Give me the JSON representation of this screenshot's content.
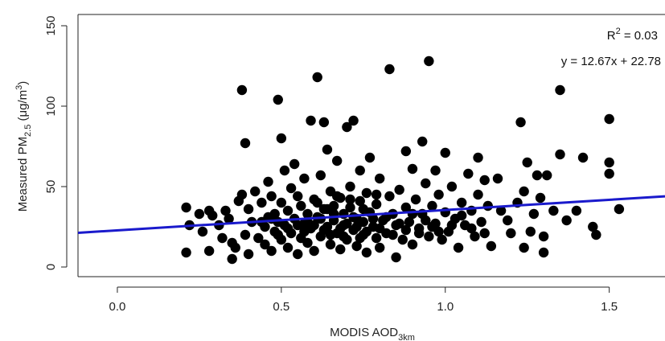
{
  "chart_data": {
    "type": "scatter",
    "xlabel": "MODIS AOD",
    "xlabel_sub": "3km",
    "ylabel": "Measured PM",
    "ylabel_sub": "2.5",
    "ylabel_unit": " (μg/m",
    "ylabel_unit_sup": "3",
    "ylabel_unit_close": ")",
    "xlim": [
      -0.12,
      1.67
    ],
    "ylim": [
      -6,
      157
    ],
    "x_ticks": [
      0.0,
      0.5,
      1.0,
      1.5
    ],
    "x_tick_labels": [
      "0.0",
      "0.5",
      "1.0",
      "1.5"
    ],
    "y_ticks": [
      0,
      50,
      100,
      150
    ],
    "y_tick_labels": [
      "0",
      "50",
      "100",
      "150"
    ],
    "grid": false,
    "annotation_r2_label": "R",
    "annotation_r2_sup": "2",
    "annotation_r2_value": " = 0.03",
    "annotation_equation": "y = 12.67x + 22.78",
    "regression": {
      "slope": 12.67,
      "intercept": 22.78,
      "color": "#1a1acc"
    },
    "point_color": "#000000",
    "points": [
      [
        0.21,
        37
      ],
      [
        0.21,
        9
      ],
      [
        0.22,
        26
      ],
      [
        0.25,
        33
      ],
      [
        0.26,
        22
      ],
      [
        0.28,
        10
      ],
      [
        0.28,
        35
      ],
      [
        0.29,
        32
      ],
      [
        0.31,
        26
      ],
      [
        0.32,
        18
      ],
      [
        0.33,
        35
      ],
      [
        0.34,
        30
      ],
      [
        0.35,
        5
      ],
      [
        0.35,
        15
      ],
      [
        0.36,
        12
      ],
      [
        0.37,
        41
      ],
      [
        0.38,
        45
      ],
      [
        0.38,
        110
      ],
      [
        0.39,
        77
      ],
      [
        0.39,
        20
      ],
      [
        0.4,
        8
      ],
      [
        0.4,
        36
      ],
      [
        0.41,
        28
      ],
      [
        0.42,
        47
      ],
      [
        0.43,
        18
      ],
      [
        0.44,
        40
      ],
      [
        0.45,
        25
      ],
      [
        0.45,
        14
      ],
      [
        0.46,
        53
      ],
      [
        0.46,
        31
      ],
      [
        0.47,
        10
      ],
      [
        0.47,
        44
      ],
      [
        0.48,
        22
      ],
      [
        0.48,
        33
      ],
      [
        0.49,
        28
      ],
      [
        0.49,
        104
      ],
      [
        0.5,
        80
      ],
      [
        0.5,
        17
      ],
      [
        0.5,
        40
      ],
      [
        0.51,
        60
      ],
      [
        0.51,
        26
      ],
      [
        0.52,
        35
      ],
      [
        0.52,
        12
      ],
      [
        0.53,
        49
      ],
      [
        0.53,
        21
      ],
      [
        0.54,
        30
      ],
      [
        0.54,
        64
      ],
      [
        0.55,
        8
      ],
      [
        0.55,
        44
      ],
      [
        0.56,
        18
      ],
      [
        0.56,
        38
      ],
      [
        0.57,
        27
      ],
      [
        0.57,
        55
      ],
      [
        0.58,
        15
      ],
      [
        0.58,
        33
      ],
      [
        0.59,
        91
      ],
      [
        0.59,
        24
      ],
      [
        0.6,
        42
      ],
      [
        0.6,
        10
      ],
      [
        0.61,
        118
      ],
      [
        0.61,
        31
      ],
      [
        0.62,
        19
      ],
      [
        0.62,
        57
      ],
      [
        0.63,
        90
      ],
      [
        0.63,
        36
      ],
      [
        0.64,
        25
      ],
      [
        0.64,
        73
      ],
      [
        0.65,
        14
      ],
      [
        0.65,
        47
      ],
      [
        0.66,
        29
      ],
      [
        0.66,
        38
      ],
      [
        0.67,
        21
      ],
      [
        0.67,
        66
      ],
      [
        0.68,
        11
      ],
      [
        0.68,
        43
      ],
      [
        0.69,
        33
      ],
      [
        0.69,
        26
      ],
      [
        0.7,
        87
      ],
      [
        0.7,
        17
      ],
      [
        0.71,
        50
      ],
      [
        0.71,
        37
      ],
      [
        0.72,
        23
      ],
      [
        0.72,
        91
      ],
      [
        0.73,
        30
      ],
      [
        0.73,
        13
      ],
      [
        0.74,
        60
      ],
      [
        0.74,
        41
      ],
      [
        0.75,
        20
      ],
      [
        0.75,
        28
      ],
      [
        0.76,
        46
      ],
      [
        0.76,
        9
      ],
      [
        0.77,
        34
      ],
      [
        0.77,
        68
      ],
      [
        0.78,
        25
      ],
      [
        0.79,
        18
      ],
      [
        0.79,
        39
      ],
      [
        0.8,
        12
      ],
      [
        0.8,
        55
      ],
      [
        0.81,
        29
      ],
      [
        0.82,
        21
      ],
      [
        0.83,
        44
      ],
      [
        0.83,
        123
      ],
      [
        0.84,
        33
      ],
      [
        0.85,
        6
      ],
      [
        0.85,
        26
      ],
      [
        0.86,
        48
      ],
      [
        0.87,
        17
      ],
      [
        0.88,
        72
      ],
      [
        0.88,
        37
      ],
      [
        0.89,
        28
      ],
      [
        0.9,
        61
      ],
      [
        0.9,
        14
      ],
      [
        0.91,
        42
      ],
      [
        0.92,
        24
      ],
      [
        0.93,
        78
      ],
      [
        0.93,
        33
      ],
      [
        0.94,
        52
      ],
      [
        0.95,
        128
      ],
      [
        0.95,
        19
      ],
      [
        0.96,
        38
      ],
      [
        0.97,
        60
      ],
      [
        0.97,
        27
      ],
      [
        0.98,
        45
      ],
      [
        0.99,
        17
      ],
      [
        1.0,
        71
      ],
      [
        1.0,
        34
      ],
      [
        1.01,
        22
      ],
      [
        1.02,
        50
      ],
      [
        1.03,
        30
      ],
      [
        1.04,
        12
      ],
      [
        1.05,
        40
      ],
      [
        1.06,
        26
      ],
      [
        1.07,
        58
      ],
      [
        1.08,
        35
      ],
      [
        1.09,
        19
      ],
      [
        1.1,
        68
      ],
      [
        1.1,
        45
      ],
      [
        1.11,
        28
      ],
      [
        1.12,
        54
      ],
      [
        1.13,
        38
      ],
      [
        1.14,
        13
      ],
      [
        1.16,
        55
      ],
      [
        1.17,
        35
      ],
      [
        1.19,
        29
      ],
      [
        1.2,
        21
      ],
      [
        1.22,
        40
      ],
      [
        1.23,
        90
      ],
      [
        1.24,
        12
      ],
      [
        1.24,
        47
      ],
      [
        1.25,
        65
      ],
      [
        1.26,
        22
      ],
      [
        1.27,
        33
      ],
      [
        1.28,
        57
      ],
      [
        1.29,
        43
      ],
      [
        1.3,
        9
      ],
      [
        1.3,
        19
      ],
      [
        1.31,
        57
      ],
      [
        1.33,
        35
      ],
      [
        1.35,
        110
      ],
      [
        1.35,
        70
      ],
      [
        1.37,
        29
      ],
      [
        1.4,
        35
      ],
      [
        1.42,
        68
      ],
      [
        1.45,
        25
      ],
      [
        1.46,
        20
      ],
      [
        1.5,
        92
      ],
      [
        1.5,
        65
      ],
      [
        1.5,
        58
      ],
      [
        1.53,
        36
      ],
      [
        0.57,
        22
      ],
      [
        0.6,
        26
      ],
      [
        0.62,
        30
      ],
      [
        0.65,
        20
      ],
      [
        0.68,
        24
      ],
      [
        0.7,
        27
      ],
      [
        0.72,
        31
      ],
      [
        0.74,
        18
      ],
      [
        0.58,
        28
      ],
      [
        0.63,
        23
      ],
      [
        0.66,
        33
      ],
      [
        0.69,
        19
      ],
      [
        0.73,
        25
      ],
      [
        0.76,
        22
      ],
      [
        0.78,
        30
      ],
      [
        0.55,
        26
      ],
      [
        0.52,
        24
      ],
      [
        0.49,
        20
      ],
      [
        0.47,
        30
      ],
      [
        0.44,
        28
      ],
      [
        0.8,
        24
      ],
      [
        0.82,
        31
      ],
      [
        0.84,
        20
      ],
      [
        0.86,
        27
      ],
      [
        0.88,
        23
      ],
      [
        0.9,
        33
      ],
      [
        0.92,
        21
      ],
      [
        0.94,
        29
      ],
      [
        0.96,
        25
      ],
      [
        0.98,
        22
      ],
      [
        1.02,
        26
      ],
      [
        1.05,
        32
      ],
      [
        1.08,
        24
      ],
      [
        1.12,
        21
      ],
      [
        0.61,
        40
      ],
      [
        0.64,
        36
      ],
      [
        0.67,
        44
      ],
      [
        0.71,
        42
      ],
      [
        0.75,
        36
      ],
      [
        0.79,
        45
      ]
    ]
  }
}
